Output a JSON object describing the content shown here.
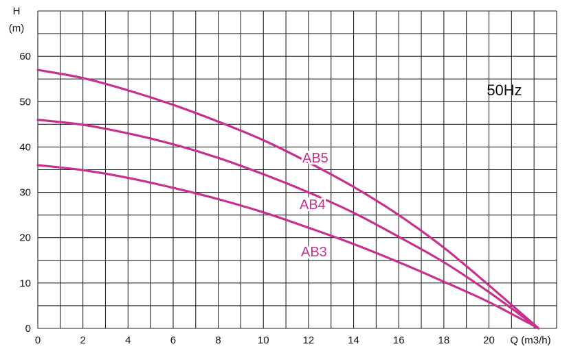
{
  "chart_data": {
    "type": "line",
    "annotation": "50Hz",
    "y_axis": {
      "label_top": "H",
      "label_unit": "(m)",
      "range": [
        0,
        70
      ],
      "ticks": [
        0,
        10,
        20,
        30,
        40,
        50,
        60
      ],
      "grid_step": 5
    },
    "x_axis": {
      "label": "Q (m3/h)",
      "range": [
        0,
        23
      ],
      "ticks": [
        0,
        2,
        4,
        6,
        8,
        10,
        12,
        14,
        16,
        18,
        20
      ],
      "grid_step": 1
    },
    "grid": true,
    "line_color": "#c8308e",
    "series": [
      {
        "name": "AB5",
        "x": [
          0,
          2,
          4,
          6,
          8,
          10,
          12,
          14,
          16,
          18,
          20,
          22.2
        ],
        "y": [
          57,
          55.2,
          52.5,
          49.3,
          45.6,
          41.5,
          36.6,
          31.2,
          25,
          17.8,
          9.5,
          0
        ]
      },
      {
        "name": "AB4",
        "x": [
          0,
          2,
          4,
          6,
          8,
          10,
          12,
          14,
          16,
          18,
          20,
          22.2
        ],
        "y": [
          46,
          44.9,
          43,
          40.6,
          37.6,
          34,
          30,
          25.5,
          20.2,
          14.6,
          8,
          0
        ]
      },
      {
        "name": "AB3",
        "x": [
          0,
          2,
          4,
          6,
          8,
          10,
          12,
          14,
          16,
          18,
          20,
          22.2
        ],
        "y": [
          36,
          34.9,
          33.2,
          31,
          28.5,
          25.6,
          22.2,
          18.6,
          14.6,
          10.3,
          5.8,
          0
        ]
      }
    ]
  }
}
